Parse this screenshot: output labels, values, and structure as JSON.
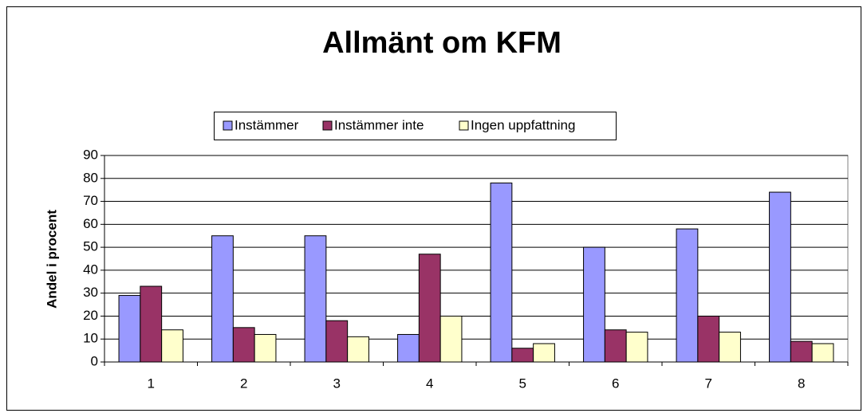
{
  "chart_data": {
    "type": "bar",
    "title": "Allmänt om KFM",
    "y_label": "Andel i procent",
    "categories": [
      "1",
      "2",
      "3",
      "4",
      "5",
      "6",
      "7",
      "8"
    ],
    "series": [
      {
        "name": "Instämmer",
        "color": "#9999ff",
        "values": [
          29,
          55,
          55,
          12,
          78,
          50,
          58,
          74
        ]
      },
      {
        "name": "Instämmer inte",
        "color": "#993366",
        "values": [
          33,
          15,
          18,
          47,
          6,
          14,
          20,
          9
        ]
      },
      {
        "name": "Ingen uppfattning",
        "color": "#ffffcc",
        "values": [
          14,
          12,
          11,
          20,
          8,
          13,
          13,
          8
        ]
      }
    ],
    "ylim": [
      0,
      90
    ],
    "yticks": [
      0,
      10,
      20,
      30,
      40,
      50,
      60,
      70,
      80,
      90
    ],
    "grid": true,
    "legend": "top"
  }
}
